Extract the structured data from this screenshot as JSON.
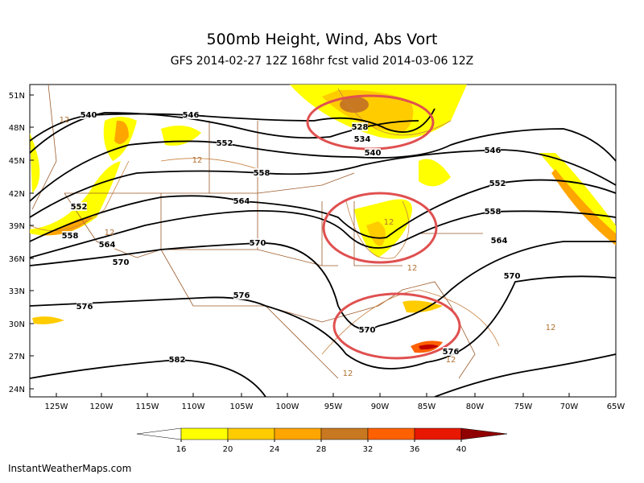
{
  "header": {
    "title": "500mb Height, Wind, Abs Vort",
    "subtitle": "GFS 2014-02-27 12Z 168hr fcst valid 2014-03-06 12Z"
  },
  "map": {
    "lat_labels": [
      "51N",
      "48N",
      "45N",
      "42N",
      "39N",
      "36N",
      "33N",
      "30N",
      "27N",
      "24N"
    ],
    "lon_labels": [
      "125W",
      "120W",
      "115W",
      "110W",
      "105W",
      "100W",
      "95W",
      "90W",
      "85W",
      "80W",
      "75W",
      "70W",
      "65W"
    ],
    "height_contour_labels": [
      540,
      546,
      552,
      558,
      564,
      570,
      576,
      582,
      528,
      534,
      540,
      546,
      552,
      558,
      564,
      570,
      576,
      570,
      552,
      558,
      564,
      570,
      576
    ],
    "vort_contour_labels": [
      12,
      12,
      12,
      12,
      12,
      12,
      12,
      12
    ]
  },
  "colorbar": {
    "ticks": [
      16,
      20,
      24,
      28,
      32,
      36,
      40
    ],
    "colors": [
      "#ffffff",
      "#ffff00",
      "#ffcc00",
      "#ffa500",
      "#c87820",
      "#ff6000",
      "#e81800",
      "#c00000",
      "#900000"
    ]
  },
  "footer": {
    "credit": "InstantWeatherMaps.com"
  }
}
